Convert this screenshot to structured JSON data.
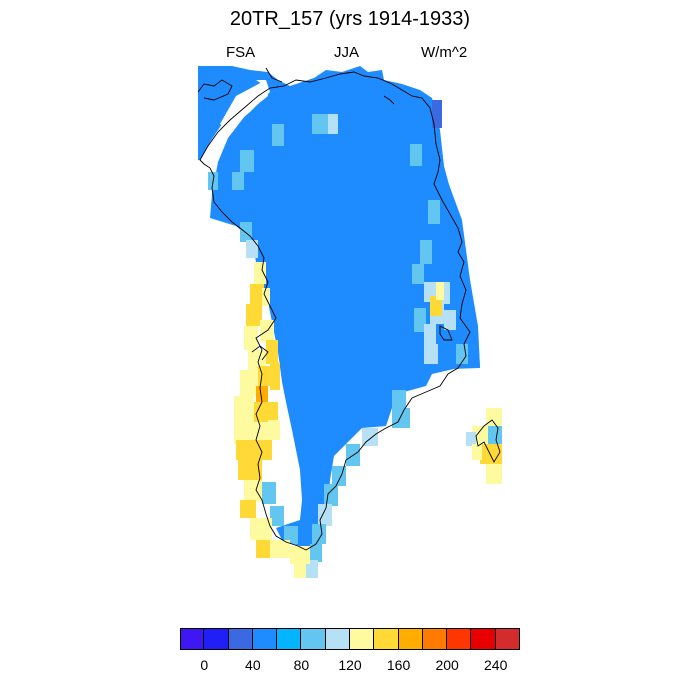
{
  "title": "20TR_157 (yrs 1914-1933)",
  "left_label": "FSA",
  "center_label": "JJA",
  "right_label": "W/m^2",
  "colorbar": {
    "colors": [
      "#3f17f3",
      "#2020f6",
      "#3a69e1",
      "#1e8cff",
      "#05b4ff",
      "#62c6f0",
      "#b6e0f6",
      "#fefaa0",
      "#ffd936",
      "#ffad00",
      "#ff7b00",
      "#ff3600",
      "#e80000",
      "#d42c2c"
    ],
    "tick_labels": [
      "0",
      "40",
      "80",
      "120",
      "160",
      "200",
      "240"
    ]
  },
  "legend_colors": {
    "ocean": "#ffffff",
    "coastline": "#000000"
  }
}
